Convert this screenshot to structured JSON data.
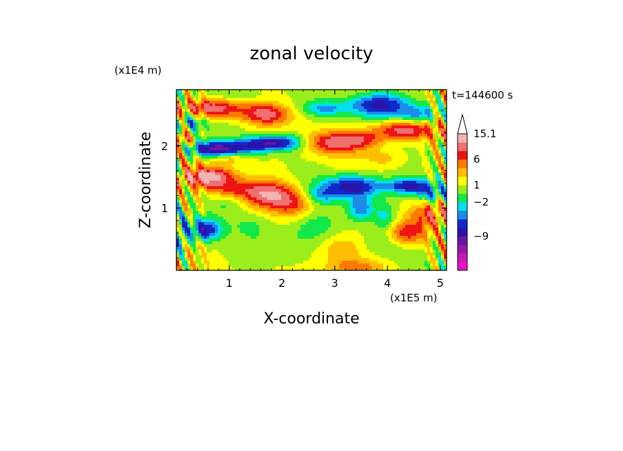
{
  "chart_data": {
    "type": "heatmap",
    "title": "zonal velocity",
    "xlabel": "X-coordinate",
    "ylabel": "Z-coordinate",
    "x_unit_label": "(x1E5 m)",
    "y_unit_label": "(x1E4 m)",
    "time_label": "t=144600 s",
    "xlim": [
      0,
      5.12
    ],
    "ylim": [
      0,
      2.9
    ],
    "x_ticks": [
      "1",
      "2",
      "3",
      "4",
      "5"
    ],
    "y_ticks": [
      "1",
      "2"
    ],
    "x_tick_values": [
      1,
      2,
      3,
      4,
      5
    ],
    "y_tick_values": [
      1,
      2
    ],
    "colorbar": {
      "tick_labels": [
        "15.1",
        "6",
        "1",
        "−2",
        "−9"
      ],
      "tick_level_index": [
        15,
        12,
        9,
        7,
        3
      ],
      "has_arrow_top": true,
      "levels": [
        {
          "color": "#ee10c8"
        },
        {
          "color": "#c818b8"
        },
        {
          "color": "#9618a8"
        },
        {
          "color": "#6c14a6"
        },
        {
          "color": "#2a14a8"
        },
        {
          "color": "#1028c8"
        },
        {
          "color": "#1c8ce8"
        },
        {
          "color": "#00e0f0"
        },
        {
          "color": "#12e84a"
        },
        {
          "color": "#9bee1c"
        },
        {
          "color": "#ffff00"
        },
        {
          "color": "#ffbe00"
        },
        {
          "color": "#ff7800"
        },
        {
          "color": "#ee1414"
        },
        {
          "color": "#f07070"
        },
        {
          "color": "#f5b4b4"
        }
      ]
    }
  }
}
